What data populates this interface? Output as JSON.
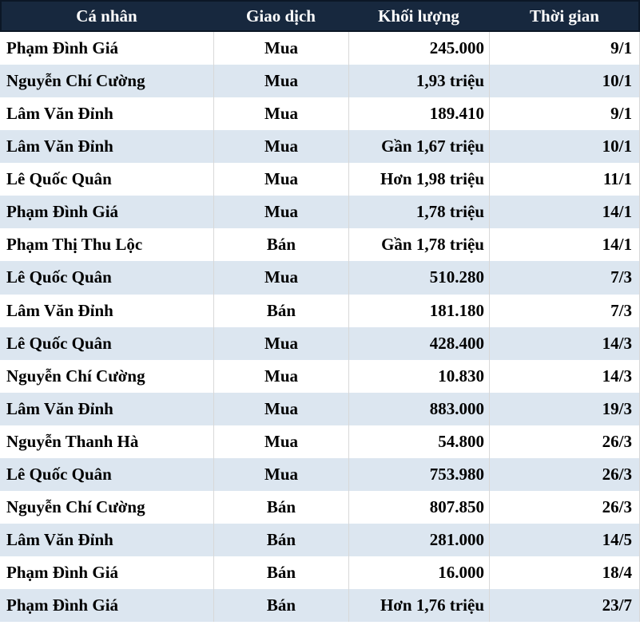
{
  "chart_data": {
    "type": "table",
    "title": "",
    "columns": [
      {
        "key": "ca_nhan",
        "label": "Cá nhân",
        "align": "left"
      },
      {
        "key": "giao_dich",
        "label": "Giao dịch",
        "align": "center"
      },
      {
        "key": "khoi_luong",
        "label": "Khối lượng",
        "align": "right"
      },
      {
        "key": "thoi_gian",
        "label": "Thời gian",
        "align": "right"
      }
    ],
    "rows": [
      [
        "Phạm Đình Giá",
        "Mua",
        "245.000",
        "9/1"
      ],
      [
        "Nguyễn Chí Cường",
        "Mua",
        "1,93 triệu",
        "10/1"
      ],
      [
        "Lâm Văn Đỉnh",
        "Mua",
        "189.410",
        "9/1"
      ],
      [
        "Lâm Văn Đỉnh",
        "Mua",
        "Gần 1,67 triệu",
        "10/1"
      ],
      [
        "Lê Quốc Quân",
        "Mua",
        "Hơn 1,98 triệu",
        "11/1"
      ],
      [
        "Phạm Đình Giá",
        "Mua",
        "1,78 triệu",
        "14/1"
      ],
      [
        "Phạm Thị Thu Lộc",
        "Bán",
        "Gần 1,78 triệu",
        "14/1"
      ],
      [
        "Lê Quốc Quân",
        "Mua",
        "510.280",
        "7/3"
      ],
      [
        "Lâm Văn Đỉnh",
        "Bán",
        "181.180",
        "7/3"
      ],
      [
        "Lê Quốc Quân",
        "Mua",
        "428.400",
        "14/3"
      ],
      [
        "Nguyễn Chí Cường",
        "Mua",
        "10.830",
        "14/3"
      ],
      [
        "Lâm Văn Đỉnh",
        "Mua",
        "883.000",
        "19/3"
      ],
      [
        "Nguyễn Thanh Hà",
        "Mua",
        "54.800",
        "26/3"
      ],
      [
        "Lê Quốc Quân",
        "Mua",
        "753.980",
        "26/3"
      ],
      [
        "Nguyễn Chí Cường",
        "Bán",
        "807.850",
        "26/3"
      ],
      [
        "Lâm Văn Đỉnh",
        "Bán",
        "281.000",
        "14/5"
      ],
      [
        "Phạm Đình Giá",
        "Bán",
        "16.000",
        "18/4"
      ],
      [
        "Phạm Đình Giá",
        "Bán",
        "Hơn 1,76 triệu",
        "23/7"
      ]
    ],
    "layout_hints": {
      "striping": "odd rows white, even rows light blue",
      "header_position": "top"
    }
  },
  "colors": {
    "header_bg": "#17283e",
    "header_outline": "#0c1726",
    "header_text": "#ffffff",
    "row_bg": "#ffffff",
    "row_alt_bg": "#dce6f0",
    "grid_line": "#d8d8d8",
    "body_text": "#000000"
  }
}
